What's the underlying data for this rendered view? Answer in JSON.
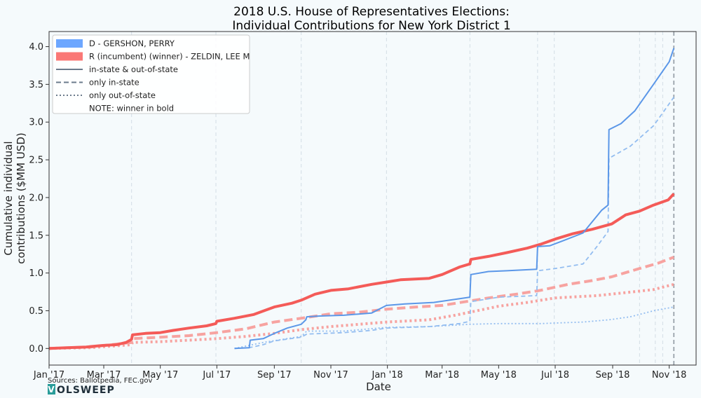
{
  "chart_data": {
    "type": "line",
    "title_line1": "2018 U.S. House of Representatives Elections:",
    "title_line2": "Individual Contributions for New York District 1",
    "xlabel": "Date",
    "ylabel_line1": "Cumulative individual",
    "ylabel_line2": "contributions ($MM USD)",
    "x_range": [
      "2017-01-01",
      "2018-11-30"
    ],
    "ylim": [
      -0.22,
      4.2
    ],
    "x_ticks": [
      {
        "date": "2017-01-01",
        "label": "Jan '17"
      },
      {
        "date": "2017-03-01",
        "label": "Mar '17"
      },
      {
        "date": "2017-05-01",
        "label": "May '17"
      },
      {
        "date": "2017-07-01",
        "label": "Jul '17"
      },
      {
        "date": "2017-09-01",
        "label": "Sep '17"
      },
      {
        "date": "2017-11-01",
        "label": "Nov '17"
      },
      {
        "date": "2018-01-01",
        "label": "Jan '18"
      },
      {
        "date": "2018-03-01",
        "label": "Mar '18"
      },
      {
        "date": "2018-05-01",
        "label": "May '18"
      },
      {
        "date": "2018-07-01",
        "label": "Jul '18"
      },
      {
        "date": "2018-09-01",
        "label": "Sep '18"
      },
      {
        "date": "2018-11-01",
        "label": "Nov '18"
      }
    ],
    "y_ticks": [
      {
        "value": 0.0,
        "label": "0.0"
      },
      {
        "value": 0.5,
        "label": "0.5"
      },
      {
        "value": 1.0,
        "label": "1.0"
      },
      {
        "value": 1.5,
        "label": "1.5"
      },
      {
        "value": 2.0,
        "label": "2.0"
      },
      {
        "value": 2.5,
        "label": "2.5"
      },
      {
        "value": 3.0,
        "label": "3.0"
      },
      {
        "value": 3.5,
        "label": "3.5"
      },
      {
        "value": 4.0,
        "label": "4.0"
      }
    ],
    "vlines": [
      "2017-03-31",
      "2017-06-30",
      "2017-09-30",
      "2017-12-31",
      "2018-03-31",
      "2018-06-12",
      "2018-06-30",
      "2018-09-30",
      "2018-10-17",
      "2018-10-25",
      "2018-11-06"
    ],
    "election_line": "2018-11-06",
    "legend_position": "top-left",
    "legend": {
      "entries": [
        {
          "kind": "patch",
          "label": "D - GERSHON, PERRY",
          "color": "#6da7ff"
        },
        {
          "kind": "patch",
          "label": "R (incumbent) (winner) - ZELDIN, LEE M",
          "color": "#fa7876"
        },
        {
          "kind": "solid",
          "label": "in-state & out-of-state",
          "color": "#6b7b8c"
        },
        {
          "kind": "dashed",
          "label": "only in-state",
          "color": "#6b7b8c"
        },
        {
          "kind": "dotted",
          "label": "only out-of-state",
          "color": "#6b7b8c"
        },
        {
          "kind": "none",
          "label": "NOTE: winner in bold",
          "color": "#6b7b8c"
        }
      ]
    },
    "colors": {
      "D": "#5b97e8",
      "D_light": "#93bdf0",
      "R": "#f45b58",
      "R_light": "#f7a3a0"
    },
    "series": [
      {
        "name": "ZELDIN, LEE M",
        "party": "R",
        "type": "total",
        "points": [
          [
            "2017-01-01",
            0.0
          ],
          [
            "2017-01-20",
            0.01
          ],
          [
            "2017-02-10",
            0.02
          ],
          [
            "2017-02-28",
            0.04
          ],
          [
            "2017-03-15",
            0.05
          ],
          [
            "2017-03-25",
            0.08
          ],
          [
            "2017-03-31",
            0.12
          ],
          [
            "2017-04-01",
            0.18
          ],
          [
            "2017-04-15",
            0.2
          ],
          [
            "2017-05-01",
            0.21
          ],
          [
            "2017-05-15",
            0.24
          ],
          [
            "2017-06-01",
            0.27
          ],
          [
            "2017-06-20",
            0.3
          ],
          [
            "2017-06-30",
            0.33
          ],
          [
            "2017-07-01",
            0.36
          ],
          [
            "2017-07-20",
            0.4
          ],
          [
            "2017-08-10",
            0.45
          ],
          [
            "2017-09-01",
            0.55
          ],
          [
            "2017-09-20",
            0.6
          ],
          [
            "2017-09-30",
            0.64
          ],
          [
            "2017-10-15",
            0.72
          ],
          [
            "2017-11-01",
            0.77
          ],
          [
            "2017-11-20",
            0.79
          ],
          [
            "2017-12-15",
            0.85
          ],
          [
            "2017-12-31",
            0.88
          ],
          [
            "2018-01-15",
            0.91
          ],
          [
            "2018-02-15",
            0.93
          ],
          [
            "2018-03-01",
            0.98
          ],
          [
            "2018-03-20",
            1.08
          ],
          [
            "2018-03-31",
            1.12
          ],
          [
            "2018-04-01",
            1.18
          ],
          [
            "2018-04-20",
            1.22
          ],
          [
            "2018-05-10",
            1.27
          ],
          [
            "2018-06-01",
            1.33
          ],
          [
            "2018-06-15",
            1.38
          ],
          [
            "2018-07-01",
            1.45
          ],
          [
            "2018-07-20",
            1.52
          ],
          [
            "2018-08-10",
            1.58
          ],
          [
            "2018-08-31",
            1.65
          ],
          [
            "2018-09-15",
            1.77
          ],
          [
            "2018-09-30",
            1.82
          ],
          [
            "2018-10-15",
            1.9
          ],
          [
            "2018-10-31",
            1.97
          ],
          [
            "2018-11-06",
            2.05
          ]
        ]
      },
      {
        "name": "ZELDIN, LEE M",
        "party": "R",
        "type": "in-state",
        "points": [
          [
            "2017-01-01",
            0.0
          ],
          [
            "2017-02-15",
            0.02
          ],
          [
            "2017-03-31",
            0.08
          ],
          [
            "2017-04-01",
            0.13
          ],
          [
            "2017-05-01",
            0.15
          ],
          [
            "2017-06-01",
            0.17
          ],
          [
            "2017-07-01",
            0.21
          ],
          [
            "2017-08-01",
            0.26
          ],
          [
            "2017-09-01",
            0.35
          ],
          [
            "2017-09-30",
            0.4
          ],
          [
            "2017-11-01",
            0.46
          ],
          [
            "2017-12-01",
            0.48
          ],
          [
            "2017-12-31",
            0.52
          ],
          [
            "2018-02-01",
            0.55
          ],
          [
            "2018-03-01",
            0.57
          ],
          [
            "2018-03-31",
            0.63
          ],
          [
            "2018-04-20",
            0.67
          ],
          [
            "2018-05-20",
            0.72
          ],
          [
            "2018-06-15",
            0.77
          ],
          [
            "2018-07-15",
            0.85
          ],
          [
            "2018-08-10",
            0.9
          ],
          [
            "2018-08-31",
            0.95
          ],
          [
            "2018-09-30",
            1.06
          ],
          [
            "2018-10-20",
            1.13
          ],
          [
            "2018-11-06",
            1.21
          ]
        ]
      },
      {
        "name": "ZELDIN, LEE M",
        "party": "R",
        "type": "out-of-state",
        "points": [
          [
            "2017-01-01",
            0.0
          ],
          [
            "2017-02-15",
            0.01
          ],
          [
            "2017-03-31",
            0.05
          ],
          [
            "2017-04-01",
            0.08
          ],
          [
            "2017-05-01",
            0.09
          ],
          [
            "2017-06-01",
            0.11
          ],
          [
            "2017-07-01",
            0.13
          ],
          [
            "2017-08-01",
            0.16
          ],
          [
            "2017-09-01",
            0.2
          ],
          [
            "2017-09-30",
            0.25
          ],
          [
            "2017-11-01",
            0.29
          ],
          [
            "2017-12-31",
            0.35
          ],
          [
            "2018-02-15",
            0.38
          ],
          [
            "2018-03-15",
            0.44
          ],
          [
            "2018-03-31",
            0.48
          ],
          [
            "2018-05-01",
            0.56
          ],
          [
            "2018-06-01",
            0.61
          ],
          [
            "2018-07-01",
            0.67
          ],
          [
            "2018-08-15",
            0.7
          ],
          [
            "2018-09-15",
            0.74
          ],
          [
            "2018-10-15",
            0.78
          ],
          [
            "2018-11-06",
            0.85
          ]
        ]
      },
      {
        "name": "GERSHON, PERRY",
        "party": "D",
        "type": "total",
        "points": [
          [
            "2017-07-20",
            0.0
          ],
          [
            "2017-08-05",
            0.01
          ],
          [
            "2017-08-06",
            0.11
          ],
          [
            "2017-08-20",
            0.13
          ],
          [
            "2017-09-01",
            0.2
          ],
          [
            "2017-09-15",
            0.27
          ],
          [
            "2017-09-30",
            0.32
          ],
          [
            "2017-10-05",
            0.38
          ],
          [
            "2017-10-06",
            0.42
          ],
          [
            "2017-10-20",
            0.43
          ],
          [
            "2017-11-15",
            0.44
          ],
          [
            "2017-12-15",
            0.47
          ],
          [
            "2017-12-31",
            0.57
          ],
          [
            "2018-01-20",
            0.59
          ],
          [
            "2018-02-20",
            0.61
          ],
          [
            "2018-03-20",
            0.66
          ],
          [
            "2018-03-31",
            0.68
          ],
          [
            "2018-04-01",
            0.98
          ],
          [
            "2018-04-20",
            1.02
          ],
          [
            "2018-05-10",
            1.03
          ],
          [
            "2018-06-11",
            1.05
          ],
          [
            "2018-06-12",
            1.35
          ],
          [
            "2018-06-25",
            1.36
          ],
          [
            "2018-07-10",
            1.43
          ],
          [
            "2018-07-31",
            1.53
          ],
          [
            "2018-08-10",
            1.68
          ],
          [
            "2018-08-20",
            1.83
          ],
          [
            "2018-08-27",
            1.9
          ],
          [
            "2018-08-28",
            2.9
          ],
          [
            "2018-09-10",
            2.98
          ],
          [
            "2018-09-25",
            3.15
          ],
          [
            "2018-10-15",
            3.5
          ],
          [
            "2018-11-01",
            3.8
          ],
          [
            "2018-11-06",
            3.98
          ]
        ]
      },
      {
        "name": "GERSHON, PERRY",
        "party": "D",
        "type": "in-state",
        "points": [
          [
            "2017-07-20",
            0.0
          ],
          [
            "2017-08-05",
            0.01
          ],
          [
            "2017-08-20",
            0.05
          ],
          [
            "2017-09-01",
            0.1
          ],
          [
            "2017-09-30",
            0.15
          ],
          [
            "2017-10-06",
            0.19
          ],
          [
            "2017-11-15",
            0.21
          ],
          [
            "2017-12-15",
            0.24
          ],
          [
            "2017-12-31",
            0.27
          ],
          [
            "2018-02-15",
            0.29
          ],
          [
            "2018-03-20",
            0.33
          ],
          [
            "2018-03-31",
            0.36
          ],
          [
            "2018-04-01",
            0.62
          ],
          [
            "2018-05-01",
            0.68
          ],
          [
            "2018-06-11",
            0.7
          ],
          [
            "2018-06-12",
            1.03
          ],
          [
            "2018-07-01",
            1.06
          ],
          [
            "2018-07-31",
            1.12
          ],
          [
            "2018-08-15",
            1.35
          ],
          [
            "2018-08-27",
            1.55
          ],
          [
            "2018-08-28",
            2.52
          ],
          [
            "2018-09-20",
            2.68
          ],
          [
            "2018-10-15",
            2.95
          ],
          [
            "2018-11-06",
            3.33
          ]
        ]
      },
      {
        "name": "GERSHON, PERRY",
        "party": "D",
        "type": "out-of-state",
        "points": [
          [
            "2017-07-20",
            0.0
          ],
          [
            "2017-08-20",
            0.08
          ],
          [
            "2017-09-30",
            0.16
          ],
          [
            "2017-10-06",
            0.23
          ],
          [
            "2017-11-15",
            0.23
          ],
          [
            "2017-12-31",
            0.28
          ],
          [
            "2018-02-15",
            0.29
          ],
          [
            "2018-03-31",
            0.32
          ],
          [
            "2018-05-01",
            0.33
          ],
          [
            "2018-06-15",
            0.33
          ],
          [
            "2018-07-31",
            0.35
          ],
          [
            "2018-08-28",
            0.38
          ],
          [
            "2018-09-20",
            0.42
          ],
          [
            "2018-10-15",
            0.5
          ],
          [
            "2018-11-06",
            0.55
          ]
        ]
      }
    ]
  },
  "footer": {
    "source": "Sources: Ballotpedia, FEC.gov",
    "logo_v": "V",
    "logo_rest": "OLSWEEP"
  }
}
